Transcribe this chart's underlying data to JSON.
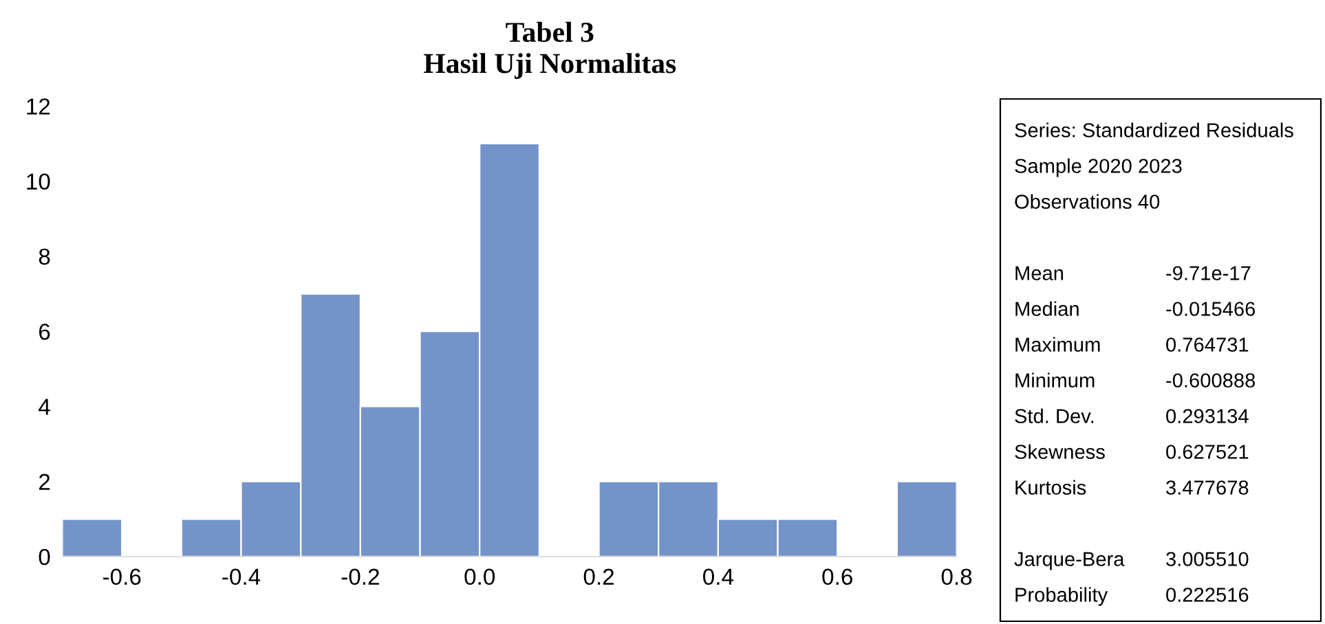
{
  "chart_data": {
    "type": "histogram",
    "title": "Tabel 3",
    "subtitle": "Hasil Uji Normalitas",
    "bins": [
      -0.7,
      -0.6,
      -0.5,
      -0.4,
      -0.3,
      -0.2,
      -0.1,
      0.0,
      0.1,
      0.2,
      0.3,
      0.4,
      0.5,
      0.6,
      0.7,
      0.8
    ],
    "values": [
      1,
      0,
      1,
      2,
      7,
      4,
      6,
      11,
      0,
      2,
      2,
      1,
      1,
      0,
      2
    ],
    "color": "#7393c9",
    "xlim": [
      -0.7,
      0.8
    ],
    "xticks": [
      {
        "value": -0.6,
        "label": "-0.6"
      },
      {
        "value": -0.4,
        "label": "-0.4"
      },
      {
        "value": -0.2,
        "label": "-0.2"
      },
      {
        "value": 0.0,
        "label": "0.0"
      },
      {
        "value": 0.2,
        "label": "0.2"
      },
      {
        "value": 0.4,
        "label": "0.4"
      },
      {
        "value": 0.6,
        "label": "0.6"
      },
      {
        "value": 0.8,
        "label": "0.8"
      }
    ],
    "ylim": [
      0,
      12
    ],
    "yticks": [
      0,
      2,
      4,
      6,
      8,
      10,
      12
    ],
    "grid": false,
    "annotations": [
      "Series: Standardized Residuals",
      "Sample 2020 2023",
      "Observations 40",
      "Mean\t-9.71e-17",
      "Median\t-0.015466",
      "Maximum\t0.764731",
      "Minimum\t-0.600888",
      "Std. Dev.\t0.293134",
      "Skewness\t0.627521",
      "Kurtosis\t3.477678",
      "Jarque-Bera\t3.005510",
      "Probability\t0.222516"
    ]
  }
}
